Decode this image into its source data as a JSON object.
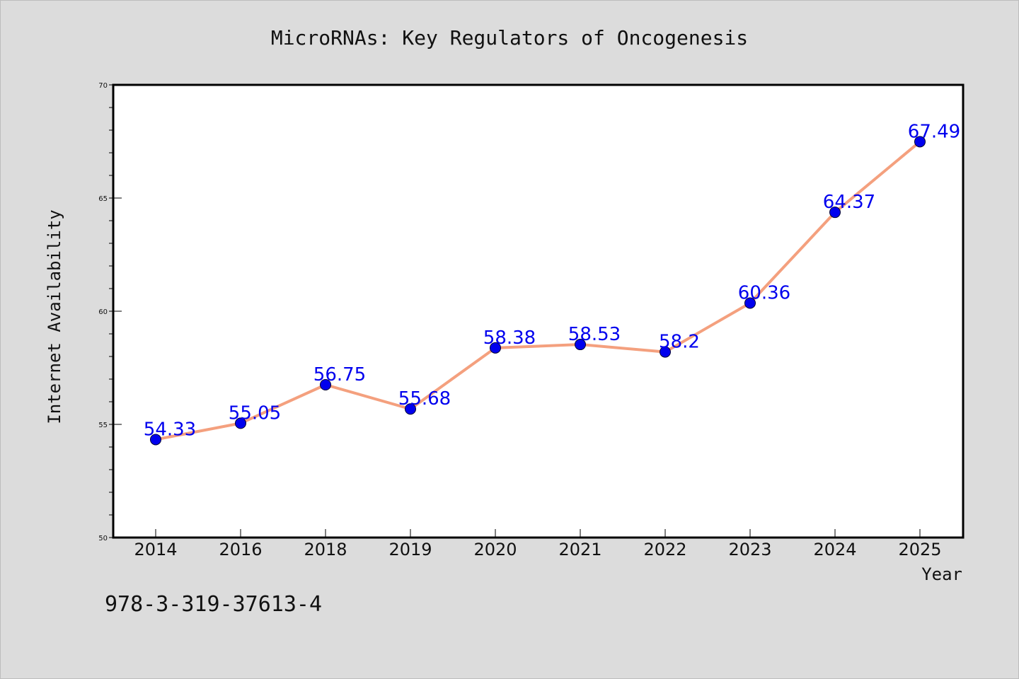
{
  "chart_data": {
    "type": "line",
    "title": "MicroRNAs: Key Regulators of Oncogenesis",
    "xlabel": "Year",
    "ylabel": "Internet Availability",
    "categories": [
      "2014",
      "2016",
      "2018",
      "2019",
      "2020",
      "2021",
      "2022",
      "2023",
      "2024",
      "2025"
    ],
    "values": [
      54.33,
      55.05,
      56.75,
      55.68,
      58.38,
      58.53,
      58.2,
      60.36,
      64.37,
      67.49
    ],
    "data_labels": [
      "54.33",
      "55.05",
      "56.75",
      "55.68",
      "58.38",
      "58.53",
      "58.2",
      "60.36",
      "64.37",
      "67.49"
    ],
    "ylim": [
      50,
      70
    ],
    "y_ticks": [
      "50",
      "55",
      "60",
      "65",
      "70"
    ],
    "grid": false,
    "legend": "none",
    "colors": {
      "line": "#f4a07e",
      "marker": "#0000ee",
      "data_label": "#0000ee",
      "background": "#dcdcdc",
      "plot_background": "#ffffff",
      "axis": "#000000"
    }
  },
  "footer": {
    "isbn": "978-3-319-37613-4"
  }
}
